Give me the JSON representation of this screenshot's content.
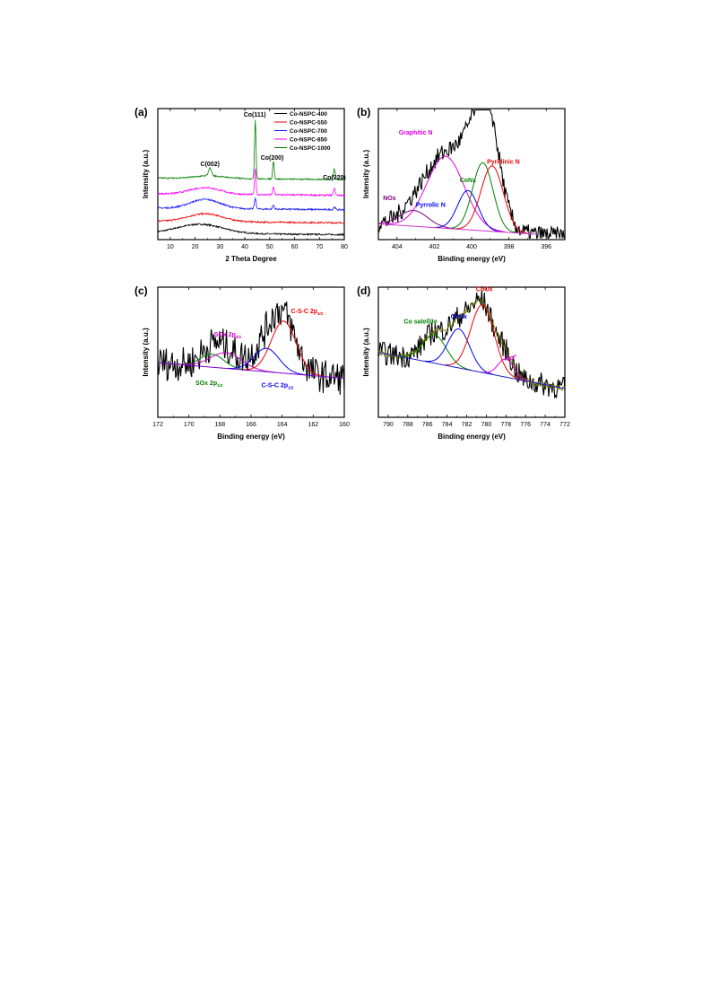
{
  "chart_data": [
    {
      "panel": "(a)",
      "type": "line",
      "xlabel": "2 Theta Degree",
      "ylabel": "Intensity (a.u.)",
      "xlim": [
        5,
        80
      ],
      "xticks": [
        "10",
        "20",
        "30",
        "40",
        "50",
        "60",
        "70",
        "80"
      ],
      "x_reversed": false,
      "annotations": [
        {
          "text": "C(002)",
          "x": 26,
          "level": 0.56,
          "color": "#000000"
        },
        {
          "text": "Co(111)",
          "x": 44,
          "level": 0.94,
          "color": "#000000"
        },
        {
          "text": "Co(200)",
          "x": 51,
          "level": 0.61,
          "color": "#000000"
        },
        {
          "text": "Co(220)",
          "x": 76,
          "level": 0.46,
          "color": "#000000"
        }
      ],
      "legend": {
        "position": "top-right"
      },
      "series": [
        {
          "name": "Co-NSPC-400",
          "color": "#000000",
          "baseline": 0.05,
          "peaks": [
            [
              22,
              9,
              0.07
            ]
          ],
          "noise": 0.006
        },
        {
          "name": "Co-NSPC-550",
          "color": "#ee0000",
          "baseline": 0.14,
          "peaks": [
            [
              24,
              7,
              0.06
            ]
          ],
          "noise": 0.006
        },
        {
          "name": "Co-NSPC-700",
          "color": "#1a1aff",
          "baseline": 0.24,
          "peaks": [
            [
              24,
              6,
              0.07
            ],
            [
              44.2,
              0.35,
              0.08
            ],
            [
              51.5,
              0.35,
              0.03
            ],
            [
              76,
              0.4,
              0.02
            ]
          ],
          "noise": 0.006
        },
        {
          "name": "Co-NSPC-850",
          "color": "#ff00ff",
          "baseline": 0.35,
          "peaks": [
            [
              24,
              6,
              0.05
            ],
            [
              44.2,
              0.3,
              0.2
            ],
            [
              51.5,
              0.3,
              0.06
            ],
            [
              76,
              0.35,
              0.05
            ]
          ],
          "noise": 0.006
        },
        {
          "name": "Co-NSPC-1000",
          "color": "#008000",
          "baseline": 0.47,
          "peaks": [
            [
              26,
              0.6,
              0.06
            ],
            [
              26,
              6,
              0.02
            ],
            [
              44.2,
              0.3,
              0.45
            ],
            [
              51.5,
              0.3,
              0.14
            ],
            [
              76,
              0.35,
              0.08
            ]
          ],
          "noise": 0.005
        }
      ]
    },
    {
      "panel": "(b)",
      "type": "line",
      "xlabel": "Binding energy (eV)",
      "ylabel": "Intensity (a.u.)",
      "xlim": [
        405,
        395
      ],
      "xticks": [
        "404",
        "402",
        "400",
        "398",
        "396"
      ],
      "x_reversed": true,
      "background": {
        "color": "#cc33cc",
        "from": [
          405,
          0.12
        ],
        "to": [
          396.5,
          0.04
        ]
      },
      "fits": [
        {
          "name": "NOx",
          "color": "#800080",
          "center": 403.1,
          "width": 0.75,
          "height": 0.12
        },
        {
          "name": "Graphitic N",
          "color": "#dd00dd",
          "center": 401.4,
          "width": 1.0,
          "height": 0.55
        },
        {
          "name": "Pyrrolic N",
          "color": "#0000ee",
          "center": 400.2,
          "width": 0.55,
          "height": 0.3
        },
        {
          "name": "CoNx",
          "color": "#008000",
          "center": 399.4,
          "width": 0.55,
          "height": 0.52
        },
        {
          "name": "Pyridinic N",
          "color": "#ee0000",
          "center": 398.9,
          "width": 0.6,
          "height": 0.5
        }
      ],
      "raw": {
        "color": "#000000",
        "noise": 0.07
      },
      "annotations": [
        {
          "text": "Graphitic N",
          "x": 403.0,
          "level": 0.8,
          "color": "#dd00dd"
        },
        {
          "text": "NOx",
          "x": 404.4,
          "level": 0.3,
          "color": "#800080"
        },
        {
          "text": "Pyrrolic N",
          "x": 402.2,
          "level": 0.25,
          "color": "#0000ee"
        },
        {
          "text": "CoNx",
          "x": 400.2,
          "level": 0.44,
          "color": "#008000"
        },
        {
          "text": "Pyridinic N",
          "x": 398.3,
          "level": 0.58,
          "color": "#ee0000"
        }
      ]
    },
    {
      "panel": "(c)",
      "type": "line",
      "xlabel": "Binding energy (eV)",
      "ylabel": "Intensity (a.u.)",
      "xlim": [
        172,
        160
      ],
      "xticks": [
        "172",
        "170",
        "168",
        "166",
        "164",
        "162",
        "160"
      ],
      "x_reversed": true,
      "background": {
        "color": "#7a00cc",
        "from": [
          172,
          0.42
        ],
        "to": [
          160,
          0.3
        ]
      },
      "fits": [
        {
          "name": "SOx 2p1/2",
          "color": "#008000",
          "center": 168.5,
          "width": 0.75,
          "height": 0.1
        },
        {
          "name": "SOx 2p3/2",
          "color": "#cc00cc",
          "center": 167.6,
          "width": 1.0,
          "height": 0.12
        },
        {
          "name": "C-S-C 2p1/2",
          "color": "#0000ee",
          "center": 165.0,
          "width": 0.8,
          "height": 0.18
        },
        {
          "name": "C-S-C 2p3/2",
          "color": "#ee0000",
          "center": 163.9,
          "width": 0.8,
          "height": 0.4
        }
      ],
      "raw": {
        "color": "#000000",
        "noise": 0.13
      },
      "annotations": [
        {
          "text": "SOx 2p",
          "sub": "3/2",
          "x": 167.5,
          "level": 0.62,
          "color": "#cc00cc"
        },
        {
          "text": "C-S-C 2p",
          "sub": "3/2",
          "x": 162.4,
          "level": 0.8,
          "color": "#ee0000"
        },
        {
          "text": "SOx 2p",
          "sub": "1/2",
          "x": 168.7,
          "level": 0.25,
          "color": "#008000"
        },
        {
          "text": "C-S-C 2p",
          "sub": "1/2",
          "x": 164.3,
          "level": 0.23,
          "color": "#0000ee"
        }
      ]
    },
    {
      "panel": "(d)",
      "type": "line",
      "xlabel": "Binding energy (eV)",
      "ylabel": "Intensity (a.u.)",
      "xlim": [
        791,
        772
      ],
      "xticks": [
        "790",
        "788",
        "786",
        "784",
        "782",
        "780",
        "778",
        "776",
        "774",
        "772"
      ],
      "x_reversed": true,
      "background": {
        "color": "#1a1acc",
        "from": [
          791,
          0.5
        ],
        "to": [
          772,
          0.22
        ]
      },
      "fits": [
        {
          "name": "Co satellite",
          "color": "#008000",
          "center": 785.3,
          "width": 1.2,
          "height": 0.22
        },
        {
          "name": "CoNx",
          "color": "#0000ee",
          "center": 782.8,
          "width": 1.1,
          "height": 0.3
        },
        {
          "name": "CoOx",
          "color": "#ee0000",
          "center": 780.4,
          "width": 1.2,
          "height": 0.52
        },
        {
          "name": "Co0",
          "color": "#dd00dd",
          "center": 778.0,
          "width": 0.8,
          "height": 0.14
        }
      ],
      "raw": {
        "color": "#000000",
        "noise": 0.09
      },
      "envelope": {
        "color": "#808000"
      },
      "annotations": [
        {
          "text": "Co satellite",
          "x": 786.7,
          "level": 0.72,
          "color": "#008000"
        },
        {
          "text": "CoNx",
          "x": 782.8,
          "level": 0.76,
          "color": "#0000ee"
        },
        {
          "text": "CoOx",
          "x": 780.2,
          "level": 0.97,
          "color": "#ee0000"
        },
        {
          "text": "Co",
          "sup": "0",
          "x": 777.5,
          "level": 0.44,
          "color": "#dd00dd"
        }
      ]
    }
  ]
}
